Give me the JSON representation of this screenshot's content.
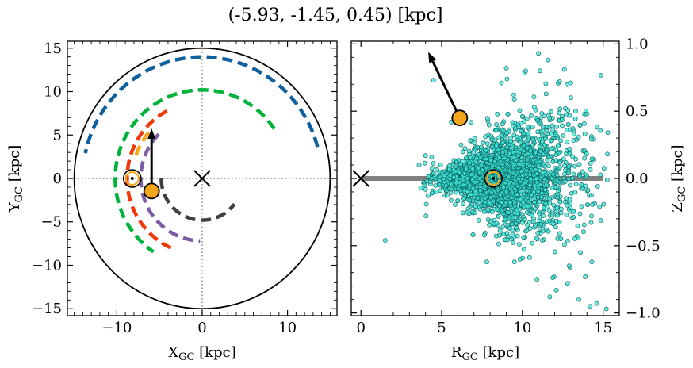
{
  "figure": {
    "title": "(-5.93, -1.45, 0.45) [kpc]"
  },
  "chart_data": [
    {
      "type": "scatter",
      "panel": "left",
      "xlabel": "X",
      "xlabel_sub": "GC",
      "xlabel_unit": " [kpc]",
      "ylabel": "Y",
      "ylabel_sub": "GC",
      "ylabel_unit": " [kpc]",
      "xlim": [
        -15.8,
        15.8
      ],
      "ylim": [
        -15.8,
        15.8
      ],
      "xticks": [
        -10,
        0,
        10
      ],
      "yticks": [
        -15,
        -10,
        -5,
        0,
        5,
        10,
        15
      ],
      "grid": false,
      "boundary_circle": {
        "cx": 0,
        "cy": 0,
        "r": 15,
        "color": "#000000"
      },
      "reference_lines": [
        {
          "orientation": "vertical",
          "value": 0,
          "color": "#808080",
          "style": "dotted"
        },
        {
          "orientation": "horizontal",
          "value": 0,
          "color": "#808080",
          "style": "dotted"
        }
      ],
      "arcs": [
        {
          "name": "",
          "r": 4.8,
          "start_deg": 180,
          "end_deg": 322,
          "color": "#404040"
        },
        {
          "name": "",
          "r": 7.2,
          "start_deg": 135,
          "end_deg": 268,
          "color": "#7c5ca3"
        },
        {
          "name": "",
          "r": 8.8,
          "start_deg": 118,
          "end_deg": 247,
          "color": "#f03a0c"
        },
        {
          "name": "",
          "r": 10.2,
          "start_deg": 34,
          "end_deg": 236,
          "color": "#00b33b"
        },
        {
          "name": "",
          "r": 8.2,
          "start_deg": 140,
          "end_deg": 162,
          "color": "#f6a61b"
        },
        {
          "name": "",
          "r": 14.0,
          "start_deg": 15,
          "end_deg": 168,
          "color": "#1060a0"
        }
      ],
      "galactic_center": {
        "x": 0,
        "y": 0,
        "marker": "x"
      },
      "sun": {
        "x": -8.2,
        "y": 0.0,
        "color": "#f6a61b"
      },
      "object": {
        "x": -5.93,
        "y": -1.45,
        "color": "#f6a61b"
      },
      "velocity_arrow": {
        "x": -5.93,
        "y": -1.45,
        "dx": 0.0,
        "dy": 7.2,
        "color": "#000000"
      }
    },
    {
      "type": "scatter",
      "panel": "right",
      "xlabel": "R",
      "xlabel_sub": "GC",
      "xlabel_unit": " [kpc]",
      "ylabel": "Z",
      "ylabel_sub": "GC",
      "ylabel_unit": " [kpc]",
      "ylabel_position": "right",
      "xlim": [
        -0.6,
        16.0
      ],
      "ylim": [
        -1.02,
        1.02
      ],
      "xticks": [
        0,
        5,
        10,
        15
      ],
      "yticks": [
        -1.0,
        -0.5,
        0.0,
        0.5,
        1.0
      ],
      "ytick_labels": [
        "−1.0",
        "−0.5",
        "0.0",
        "0.5",
        "1.0"
      ],
      "grid": false,
      "disk_line": {
        "x": [
          0,
          15
        ],
        "y": 0,
        "color": "#808080"
      },
      "point_color": "#40e0d0",
      "point_edge": "#006060",
      "approx_point_count": 2600,
      "outliers": [
        [
          1.5,
          -0.46
        ],
        [
          4.5,
          0.73
        ],
        [
          5.6,
          0.42
        ],
        [
          7.8,
          -0.62
        ],
        [
          9.5,
          -0.62
        ],
        [
          11.0,
          0.93
        ],
        [
          11.6,
          0.88
        ],
        [
          12.3,
          0.72
        ],
        [
          12.6,
          0.81
        ],
        [
          13.0,
          0.6
        ],
        [
          13.5,
          -0.9
        ],
        [
          14.2,
          -0.95
        ],
        [
          14.6,
          -0.93
        ],
        [
          15.2,
          -0.97
        ],
        [
          11.7,
          -0.88
        ],
        [
          12.1,
          -0.83
        ],
        [
          12.8,
          -0.78
        ],
        [
          13.9,
          -0.73
        ],
        [
          9.0,
          0.82
        ],
        [
          10.2,
          0.8
        ],
        [
          8.7,
          0.71
        ],
        [
          14.0,
          0.48
        ],
        [
          13.3,
          0.5
        ],
        [
          12.9,
          -0.65
        ],
        [
          10.9,
          -0.75
        ],
        [
          3.7,
          -0.07
        ],
        [
          4.0,
          0.17
        ],
        [
          3.6,
          0.1
        ],
        [
          14.3,
          -0.62
        ],
        [
          13.6,
          -0.55
        ]
      ],
      "galactic_center": {
        "x": 0,
        "y": 0,
        "marker": "x"
      },
      "sun": {
        "x": 8.2,
        "y": 0.0,
        "color": "#f6a61b"
      },
      "object": {
        "x": 6.12,
        "y": 0.45,
        "color": "#f6a61b"
      },
      "velocity_arrow": {
        "x": 6.12,
        "y": 0.45,
        "dx": -1.95,
        "dy": 0.49,
        "color": "#000000"
      }
    }
  ]
}
